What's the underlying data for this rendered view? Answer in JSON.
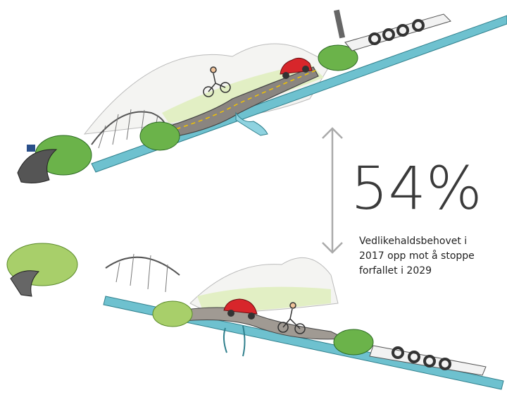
{
  "stat": {
    "value": "54%",
    "caption_lines": [
      "Vedlikehaldsbehovet i",
      "2017 opp mot å stoppe",
      "forfallet i 2029"
    ]
  }
}
